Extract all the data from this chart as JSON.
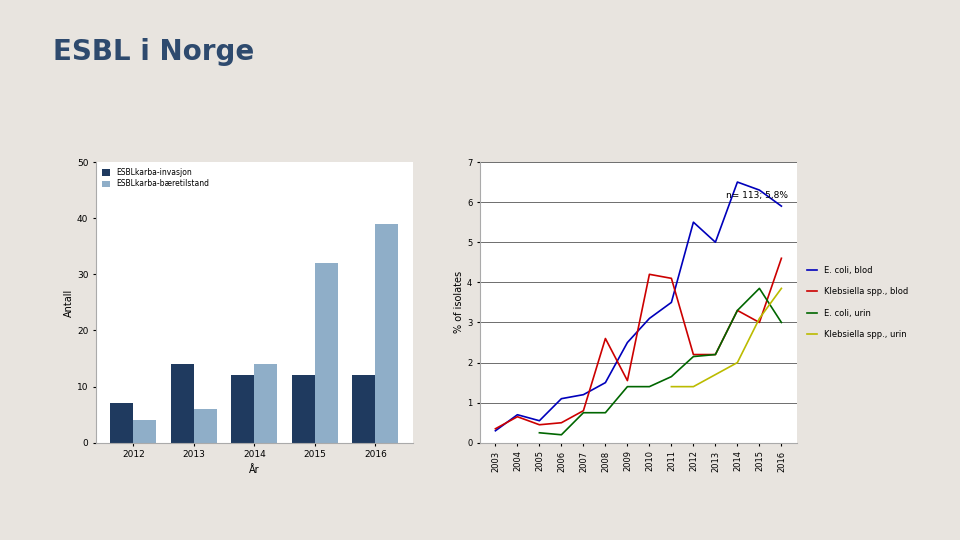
{
  "title": "ESBL i Norge",
  "title_color": "#2E4A6E",
  "bg_color": "#E8E4DF",
  "bar_years": [
    2012,
    2013,
    2014,
    2015,
    2016
  ],
  "bar_invasjon": [
    7,
    14,
    12,
    12,
    12
  ],
  "bar_baeretilstand": [
    4,
    6,
    14,
    32,
    39
  ],
  "bar_color_invasjon": "#1F3A5F",
  "bar_color_baeretilstand": "#8FAEC8",
  "bar_ylabel": "Antall",
  "bar_xlabel": "År",
  "bar_legend1": "ESBLkarba-invasjon",
  "bar_legend2": "ESBLkarba-bæretilstand",
  "bar_ylim": [
    0,
    50
  ],
  "bar_yticks": [
    0,
    10,
    20,
    30,
    40,
    50
  ],
  "line_years": [
    2003,
    2004,
    2005,
    2006,
    2007,
    2008,
    2009,
    2010,
    2011,
    2012,
    2013,
    2014,
    2015,
    2016
  ],
  "ecoli_blod": [
    0.3,
    0.7,
    0.55,
    1.1,
    1.2,
    1.5,
    2.5,
    3.1,
    3.5,
    5.5,
    5.0,
    6.5,
    6.3,
    5.9
  ],
  "klebsiella_blod": [
    0.35,
    0.65,
    0.45,
    0.5,
    0.8,
    2.6,
    1.55,
    4.2,
    4.1,
    2.2,
    2.2,
    3.3,
    3.0,
    4.6
  ],
  "ecoli_urin": [
    null,
    null,
    0.25,
    0.2,
    0.75,
    0.75,
    1.4,
    1.4,
    1.65,
    2.15,
    2.2,
    3.3,
    3.85,
    3.0
  ],
  "klebsiella_urin": [
    null,
    null,
    null,
    null,
    null,
    null,
    null,
    null,
    1.4,
    1.4,
    null,
    2.0,
    3.1,
    3.85
  ],
  "line_ylabel": "% of isolates",
  "line_ylim": [
    0,
    7
  ],
  "line_yticks": [
    0,
    1,
    2,
    3,
    4,
    5,
    6,
    7
  ],
  "annotation": "n= 113; 5,8%",
  "legend_ecoli_blod": "E. coli, blod",
  "legend_klebsiella_blod": "Klebsiella spp., blod",
  "legend_ecoli_urin": "E. coli, urin",
  "legend_klebsiella_urin": "Klebsiella spp., urin",
  "ecoli_blod_color": "#0000BB",
  "klebsiella_blod_color": "#CC0000",
  "ecoli_urin_color": "#006600",
  "klebsiella_urin_color": "#BBBB00"
}
